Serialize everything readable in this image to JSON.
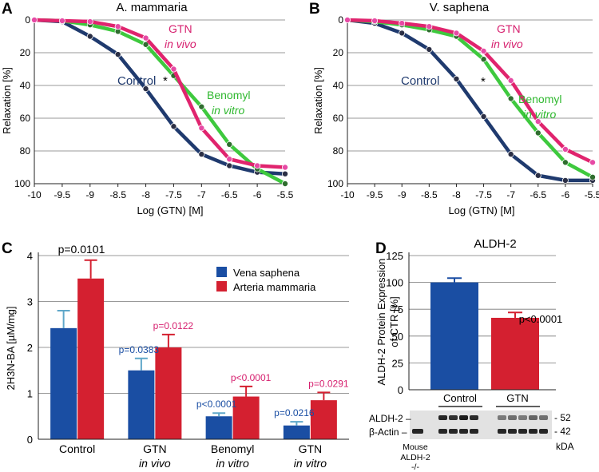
{
  "colors": {
    "control": "#1f3a6e",
    "gtn": "#e0246e",
    "benomyl": "#3ec93e",
    "vena": "#1a4ea3",
    "arteria": "#d42030",
    "pink_text": "#d61f6e",
    "blue_text": "#1a4ea3",
    "green_text": "#2fb82f",
    "grid": "#777777"
  },
  "chart_data": [
    {
      "id": "A",
      "type": "line",
      "panel_label": "A",
      "title": "A. mammaria",
      "xlabel": "Log (GTN) [M]",
      "ylabel": "Relaxation [%]",
      "xlim": [
        -10,
        -5.5
      ],
      "ylim": [
        0,
        100
      ],
      "y_inverted": true,
      "x_ticks": [
        "-10",
        "-9.5",
        "-9",
        "-8.5",
        "-8",
        "-7.5",
        "-7",
        "-6.5",
        "-6",
        "-5.5"
      ],
      "y_ticks": [
        "0",
        "20",
        "40",
        "60",
        "80",
        "100"
      ],
      "series": [
        {
          "name": "Control",
          "x": [
            -10,
            -9.5,
            -9,
            -8.5,
            -8,
            -7.5,
            -7,
            -6.5,
            -6,
            -5.5
          ],
          "y": [
            0,
            1,
            10,
            21,
            42,
            65,
            82,
            89,
            93,
            94
          ]
        },
        {
          "name": "Benomyl in vitro",
          "x": [
            -10,
            -9.5,
            -9,
            -8.5,
            -8,
            -7.5,
            -7,
            -6.5,
            -6,
            -5.5
          ],
          "y": [
            0,
            0.5,
            3,
            7,
            15,
            34,
            53,
            76,
            91,
            100
          ]
        },
        {
          "name": "GTN in vivo",
          "x": [
            -10,
            -9.5,
            -9,
            -8.5,
            -8,
            -7.5,
            -7,
            -6.5,
            -6,
            -5.5
          ],
          "y": [
            0,
            0.5,
            1,
            4,
            11,
            30,
            66,
            85,
            89,
            90
          ]
        }
      ],
      "labels": {
        "control": "Control",
        "gtn_1": "GTN",
        "gtn_2": "in vivo",
        "benomyl_1": "Benomyl",
        "benomyl_2": "in vitro",
        "star": "*"
      }
    },
    {
      "id": "B",
      "type": "line",
      "panel_label": "B",
      "title": "V. saphena",
      "xlabel": "Log (GTN) [M]",
      "ylabel": "Relaxation [%]",
      "xlim": [
        -10,
        -5.5
      ],
      "ylim": [
        0,
        100
      ],
      "y_inverted": true,
      "x_ticks": [
        "-10",
        "-9.5",
        "-9",
        "-8.5",
        "-8",
        "-7.5",
        "-7",
        "-6.5",
        "-6",
        "-5.5"
      ],
      "y_ticks": [
        "0",
        "20",
        "40",
        "60",
        "80",
        "100"
      ],
      "series": [
        {
          "name": "Control",
          "x": [
            -10,
            -9.5,
            -9,
            -8.5,
            -8,
            -7.5,
            -7,
            -6.5,
            -6,
            -5.5
          ],
          "y": [
            0,
            2,
            8,
            18,
            36,
            59,
            82,
            95,
            98,
            98
          ]
        },
        {
          "name": "Benomyl in vitro",
          "x": [
            -10,
            -9.5,
            -9,
            -8.5,
            -8,
            -7.5,
            -7,
            -6.5,
            -6,
            -5.5
          ],
          "y": [
            0,
            1,
            3,
            6,
            10,
            24,
            48,
            69,
            87,
            96
          ]
        },
        {
          "name": "GTN in vivo",
          "x": [
            -10,
            -9.5,
            -9,
            -8.5,
            -8,
            -7.5,
            -7,
            -6.5,
            -6,
            -5.5
          ],
          "y": [
            0,
            0.5,
            2,
            4,
            8,
            19,
            37,
            62,
            79,
            87
          ]
        }
      ],
      "labels": {
        "control": "Control",
        "gtn_1": "GTN",
        "gtn_2": "in vivo",
        "benomyl_1": "Benomyl",
        "benomyl_2": "in vitro",
        "star": "*"
      }
    },
    {
      "id": "C",
      "type": "bar",
      "panel_label": "C",
      "ylabel": "2H3N-BA [µM/mg]",
      "ylim": [
        0,
        4
      ],
      "y_ticks": [
        "0",
        "1",
        "2",
        "3",
        "4"
      ],
      "categories": [
        {
          "line1": "Control",
          "line2": ""
        },
        {
          "line1": "GTN",
          "line2": "in vivo"
        },
        {
          "line1": "Benomyl",
          "line2": "in vitro"
        },
        {
          "line1": "GTN",
          "line2": "in vitro"
        }
      ],
      "series": [
        {
          "name": "Vena saphena",
          "values": [
            2.42,
            1.5,
            0.5,
            0.3
          ],
          "errors": [
            0.38,
            0.26,
            0.07,
            0.08
          ]
        },
        {
          "name": "Arteria mammaria",
          "values": [
            3.5,
            2.0,
            0.93,
            0.85
          ],
          "errors": [
            0.4,
            0.28,
            0.22,
            0.17
          ]
        }
      ],
      "annotations": {
        "top": "p=0.0101",
        "vena": [
          "",
          "p=0.0383",
          "p<0.0001",
          "p=0.0216"
        ],
        "arteria": [
          "",
          "p=0.0122",
          "p<0.0001",
          "p=0.0291"
        ]
      }
    },
    {
      "id": "D",
      "type": "bar",
      "panel_label": "D",
      "title": "ALDH-2",
      "ylabel_1": "ALDH-2 Protein Expression",
      "ylabel_2": "of CTR [%]",
      "ylim": [
        0,
        120
      ],
      "y_ticks": [
        "0",
        "25",
        "50",
        "75",
        "100",
        "125"
      ],
      "categories": [
        "Control",
        "GTN"
      ],
      "values": [
        100,
        67
      ],
      "errors": [
        4,
        5
      ],
      "annotation": "p<0.0001",
      "blot": {
        "row_labels": [
          "ALDH-2 –",
          "β-Actin –"
        ],
        "right_markers": [
          "- 52",
          "- 42"
        ],
        "unit": "kDA",
        "mouse_label": [
          "Mouse",
          "ALDH-2",
          "-/-"
        ]
      }
    }
  ]
}
